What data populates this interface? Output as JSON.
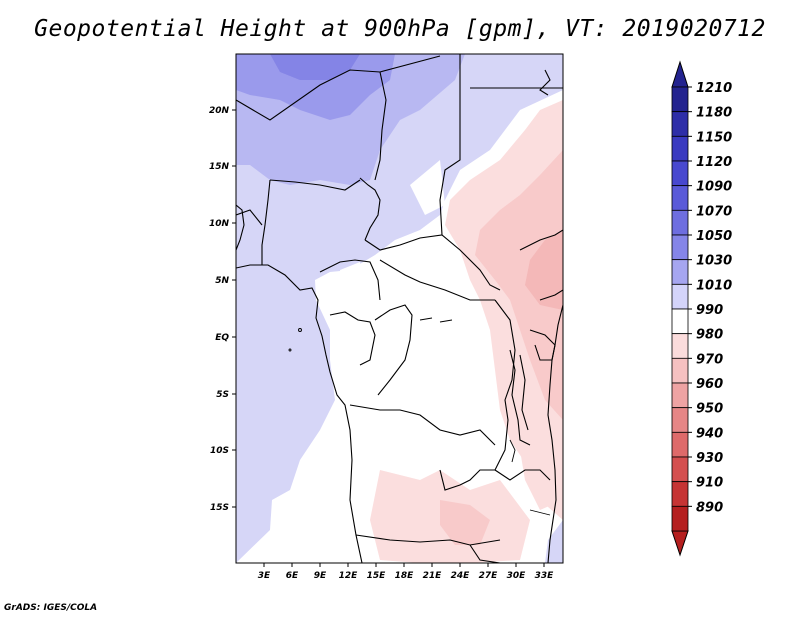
{
  "title": "Geopotential Height at 900hPa [gpm], VT: 2019020712",
  "credit": "GrADS: IGES/COLA",
  "map": {
    "lon_range": [
      0,
      35
    ],
    "lat_range": [
      -20,
      25
    ],
    "y_ticks": [
      "20N",
      "15N",
      "10N",
      "5N",
      "EQ",
      "5S",
      "10S",
      "15S"
    ],
    "x_ticks": [
      "3E",
      "6E",
      "9E",
      "12E",
      "15E",
      "18E",
      "21E",
      "24E",
      "27E",
      "30E",
      "33E"
    ]
  },
  "colorbar": {
    "labels": [
      "1210",
      "1180",
      "1150",
      "1120",
      "1090",
      "1070",
      "1050",
      "1030",
      "1010",
      "990",
      "980",
      "970",
      "960",
      "950",
      "940",
      "930",
      "910",
      "890"
    ],
    "colors": [
      "#23238f",
      "#2e2ea8",
      "#3a3ac0",
      "#4848cf",
      "#5a5ad8",
      "#6e6ee0",
      "#8585e8",
      "#a6a6f0",
      "#d4d4fa",
      "#ffffff",
      "#fbdcdc",
      "#f6c1c1",
      "#eea3a3",
      "#e68686",
      "#de6a6a",
      "#d44f4f",
      "#c63434",
      "#b51f1f"
    ]
  }
}
